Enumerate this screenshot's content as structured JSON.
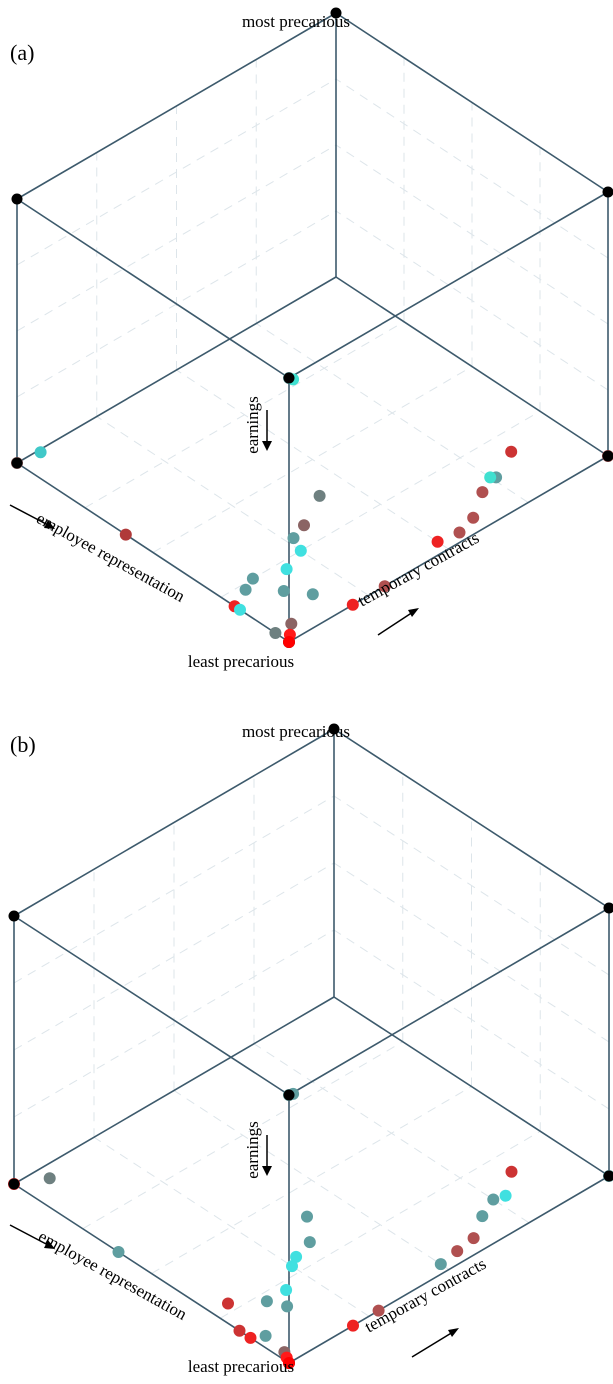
{
  "chart_data": [
    {
      "type": "scatter3d",
      "panel_label": "(a)",
      "top_label": "most precarious",
      "bottom_label": "least precarious",
      "axes": {
        "x": "employee representation",
        "y": "temporary contracts",
        "z": "earnings"
      },
      "grid": true,
      "colors": {
        "edge": "#3d5a6c",
        "vertex": "#000000"
      },
      "points": [
        {
          "x": 0.0,
          "y": 0.0,
          "z": 1.0,
          "color": "#5f9ea0"
        },
        {
          "x": 0.02,
          "y": 0.03,
          "z": 0.96,
          "color": "#40e0d0"
        },
        {
          "x": 0.0,
          "y": 0.0,
          "z": 0.0,
          "color": "#000000"
        },
        {
          "x": 1.0,
          "y": 0.0,
          "z": 0.0,
          "color": "#8b5f5f"
        },
        {
          "x": 0.96,
          "y": 0.04,
          "z": 0.04,
          "color": "#40c8c8"
        },
        {
          "x": 0.0,
          "y": 1.0,
          "z": 0.0,
          "color": "#a05050"
        },
        {
          "x": 0.18,
          "y": 0.85,
          "z": 0.0,
          "color": "#cc3333"
        },
        {
          "x": 0.13,
          "y": 0.76,
          "z": 0.0,
          "color": "#5f9ea0"
        },
        {
          "x": 0.14,
          "y": 0.75,
          "z": 0.0,
          "color": "#40e0d0"
        },
        {
          "x": 0.11,
          "y": 0.7,
          "z": 0.0,
          "color": "#b05050"
        },
        {
          "x": 0.05,
          "y": 0.62,
          "z": 0.0,
          "color": "#b05050"
        },
        {
          "x": 0.03,
          "y": 0.56,
          "z": 0.0,
          "color": "#b05050"
        },
        {
          "x": 0.04,
          "y": 0.5,
          "z": 0.0,
          "color": "#ee2222"
        },
        {
          "x": 0.38,
          "y": 0.42,
          "z": 0.0,
          "color": "#6e8080"
        },
        {
          "x": 0.32,
          "y": 0.32,
          "z": 0.0,
          "color": "#8b6464"
        },
        {
          "x": 0.3,
          "y": 0.27,
          "z": 0.0,
          "color": "#5f9ea0"
        },
        {
          "x": 0.25,
          "y": 0.25,
          "z": 0.0,
          "color": "#40e0e0"
        },
        {
          "x": 0.22,
          "y": 0.18,
          "z": 0.0,
          "color": "#40e0e0"
        },
        {
          "x": 0.16,
          "y": 0.12,
          "z": 0.0,
          "color": "#5f9ea0"
        },
        {
          "x": 0.1,
          "y": 0.16,
          "z": 0.0,
          "color": "#5f9ea0"
        },
        {
          "x": 0.05,
          "y": 0.0,
          "z": 0.0,
          "color": "#6e8080"
        },
        {
          "x": 0.6,
          "y": 0.0,
          "z": 0.0,
          "color": "#b03a3a"
        },
        {
          "x": 0.25,
          "y": 0.1,
          "z": 0.0,
          "color": "#5f9ea0"
        },
        {
          "x": 0.2,
          "y": 0.0,
          "z": 0.0,
          "color": "#ee2222"
        },
        {
          "x": 0.23,
          "y": 0.06,
          "z": 0.0,
          "color": "#5f9ea0"
        },
        {
          "x": 0.18,
          "y": 0.0,
          "z": 0.0,
          "color": "#40e0e0"
        },
        {
          "x": 0.0,
          "y": 0.2,
          "z": 0.0,
          "color": "#ee2222"
        },
        {
          "x": 0.0,
          "y": 0.3,
          "z": 0.0,
          "color": "#b05050"
        },
        {
          "x": 0.05,
          "y": 0.05,
          "z": 0.0,
          "color": "#8b6464"
        },
        {
          "x": 0.02,
          "y": 0.02,
          "z": 0.0,
          "color": "#ff1a1a"
        },
        {
          "x": 0.0,
          "y": 0.0,
          "z": 0.0,
          "color": "#ff0000"
        }
      ]
    },
    {
      "type": "scatter3d",
      "panel_label": "(b)",
      "top_label": "most precarious",
      "bottom_label": "least precarious",
      "axes": {
        "x": "employee representation",
        "y": "temporary contracts",
        "z": "earnings"
      },
      "grid": true,
      "colors": {
        "edge": "#3d5a6c",
        "vertex": "#000000"
      },
      "points": [
        {
          "x": 0.0,
          "y": 0.0,
          "z": 1.0,
          "color": "#5f9ea0"
        },
        {
          "x": 0.02,
          "y": 0.03,
          "z": 0.97,
          "color": "#5f9ea0"
        },
        {
          "x": 0.0,
          "y": 0.0,
          "z": 0.0,
          "color": "#000000"
        },
        {
          "x": 1.0,
          "y": 0.0,
          "z": 0.0,
          "color": "#cc2222"
        },
        {
          "x": 0.94,
          "y": 0.06,
          "z": 0.02,
          "color": "#6e8080"
        },
        {
          "x": 0.0,
          "y": 1.0,
          "z": 0.0,
          "color": "#5f9ea0"
        },
        {
          "x": 0.18,
          "y": 0.85,
          "z": 0.0,
          "color": "#cc3333"
        },
        {
          "x": 0.12,
          "y": 0.78,
          "z": 0.0,
          "color": "#40e0e0"
        },
        {
          "x": 0.13,
          "y": 0.75,
          "z": 0.0,
          "color": "#5f9ea0"
        },
        {
          "x": 0.1,
          "y": 0.69,
          "z": 0.0,
          "color": "#5f9ea0"
        },
        {
          "x": 0.05,
          "y": 0.62,
          "z": 0.0,
          "color": "#b05050"
        },
        {
          "x": 0.04,
          "y": 0.56,
          "z": 0.0,
          "color": "#b05050"
        },
        {
          "x": 0.03,
          "y": 0.5,
          "z": 0.0,
          "color": "#5f9ea0"
        },
        {
          "x": 0.4,
          "y": 0.4,
          "z": 0.0,
          "color": "#5f9ea0"
        },
        {
          "x": 0.32,
          "y": 0.34,
          "z": 0.0,
          "color": "#5f9ea0"
        },
        {
          "x": 0.3,
          "y": 0.28,
          "z": 0.0,
          "color": "#40e0e0"
        },
        {
          "x": 0.28,
          "y": 0.25,
          "z": 0.0,
          "color": "#40e0e0"
        },
        {
          "x": 0.22,
          "y": 0.18,
          "z": 0.0,
          "color": "#40e0e0"
        },
        {
          "x": 0.17,
          "y": 0.14,
          "z": 0.0,
          "color": "#5f9ea0"
        },
        {
          "x": 0.28,
          "y": 0.05,
          "z": 0.0,
          "color": "#cc3333"
        },
        {
          "x": 0.62,
          "y": 0.0,
          "z": 0.0,
          "color": "#5f9ea0"
        },
        {
          "x": 0.22,
          "y": 0.12,
          "z": 0.0,
          "color": "#5f9ea0"
        },
        {
          "x": 0.18,
          "y": 0.0,
          "z": 0.0,
          "color": "#cc3333"
        },
        {
          "x": 0.14,
          "y": 0.0,
          "z": 0.0,
          "color": "#ee2222"
        },
        {
          "x": 0.12,
          "y": 0.03,
          "z": 0.0,
          "color": "#5f9ea0"
        },
        {
          "x": 0.0,
          "y": 0.2,
          "z": 0.0,
          "color": "#ee2222"
        },
        {
          "x": 0.0,
          "y": 0.28,
          "z": 0.0,
          "color": "#b05050"
        },
        {
          "x": 0.04,
          "y": 0.02,
          "z": 0.0,
          "color": "#8b6464"
        },
        {
          "x": 0.02,
          "y": 0.01,
          "z": 0.0,
          "color": "#ff1a1a"
        },
        {
          "x": 0.0,
          "y": 0.0,
          "z": 0.0,
          "color": "#ff0000"
        }
      ]
    }
  ]
}
